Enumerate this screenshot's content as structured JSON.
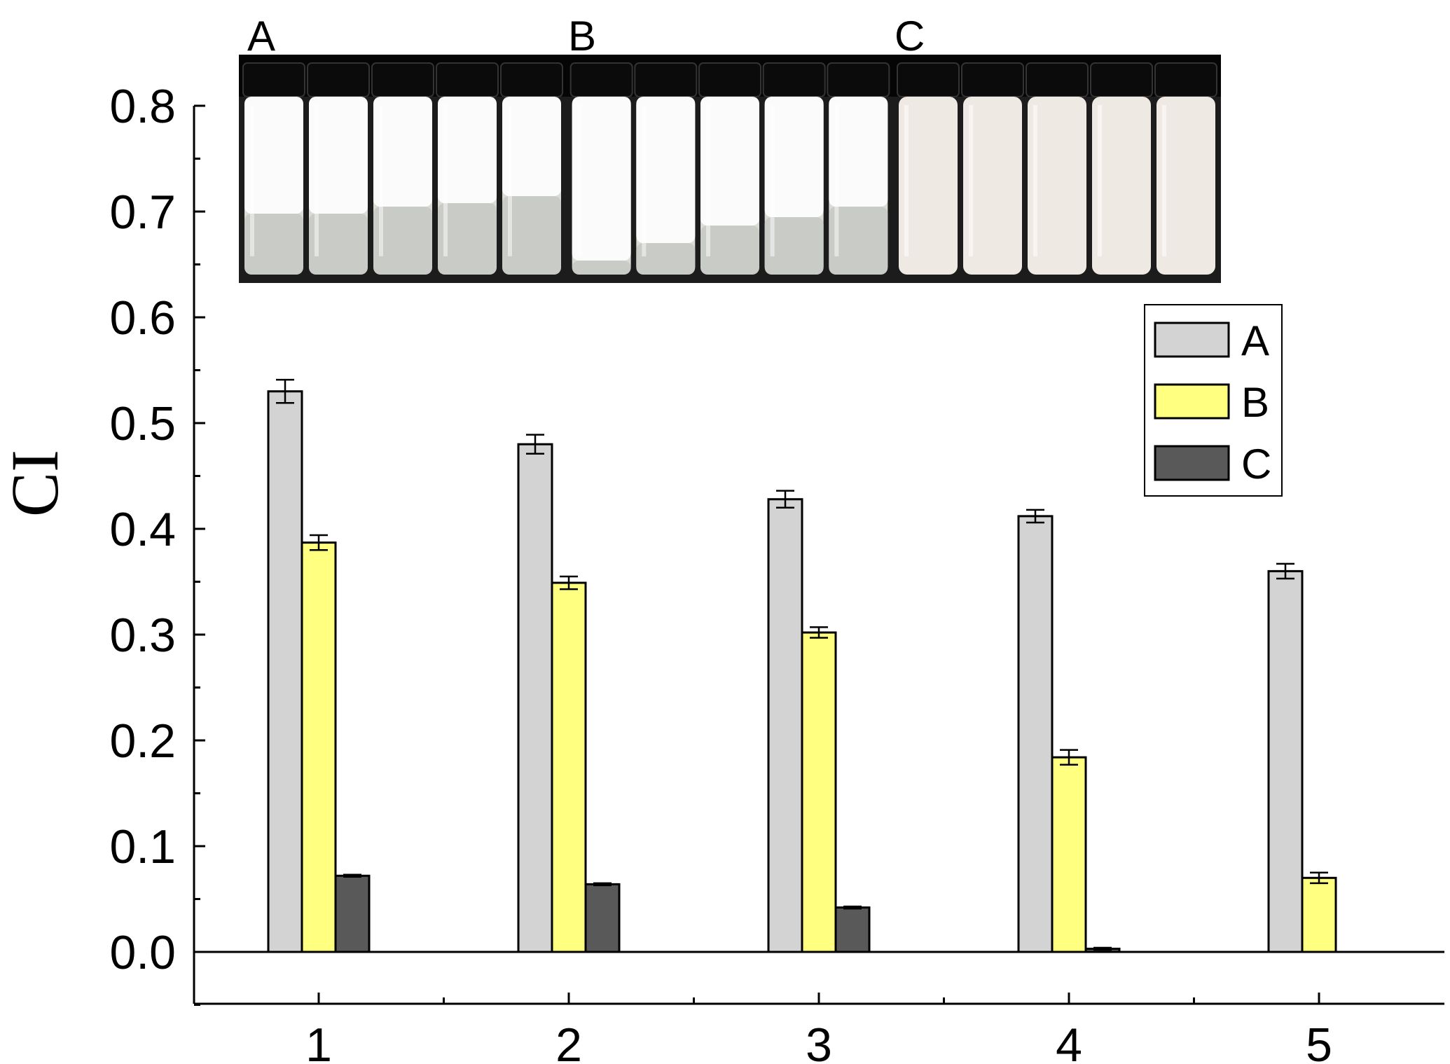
{
  "chart_data": {
    "type": "bar",
    "xlabel": "",
    "ylabel": "CI",
    "ylim": [
      -0.05,
      0.8
    ],
    "yticks": [
      "0.0",
      "0.1",
      "0.2",
      "0.3",
      "0.4",
      "0.5",
      "0.6",
      "0.7",
      "0.8"
    ],
    "categories": [
      "1",
      "2",
      "3",
      "4",
      "5"
    ],
    "series": [
      {
        "name": "A",
        "color": "#d3d3d3",
        "values": [
          0.53,
          0.48,
          0.428,
          0.412,
          0.36
        ],
        "errors": [
          0.011,
          0.009,
          0.008,
          0.006,
          0.007
        ]
      },
      {
        "name": "B",
        "color": "#ffff80",
        "values": [
          0.387,
          0.349,
          0.302,
          0.184,
          0.07
        ],
        "errors": [
          0.007,
          0.006,
          0.005,
          0.007,
          0.005
        ]
      },
      {
        "name": "C",
        "color": "#595959",
        "values": [
          0.072,
          0.064,
          0.042,
          0.003,
          null
        ],
        "errors": [
          0.001,
          0.001,
          0.001,
          0.001,
          null
        ]
      }
    ],
    "legend": "top-right",
    "grid": false,
    "zero_line": true
  },
  "inset_photos": {
    "labels": [
      "A",
      "B",
      "C"
    ]
  }
}
